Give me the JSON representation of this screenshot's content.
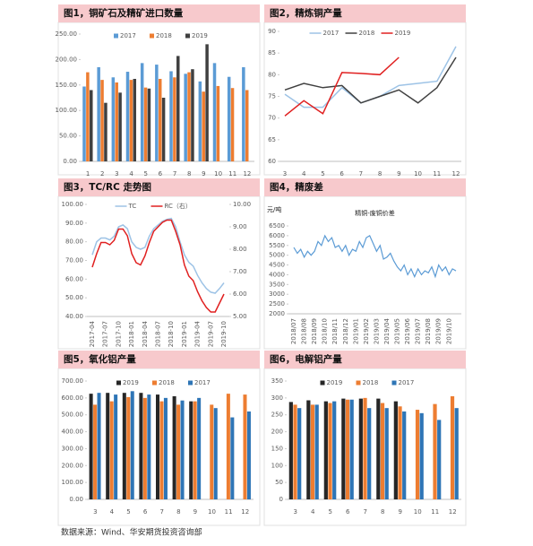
{
  "chart_data": [
    {
      "type": "bar",
      "title": "图1，铜矿石及精矿进口数量",
      "categories": [
        "1",
        "2",
        "3",
        "4",
        "5",
        "6",
        "7",
        "8",
        "9",
        "10",
        "11",
        "12"
      ],
      "series": [
        {
          "name": "2017",
          "color": "#5b9bd5",
          "values": [
            147,
            185,
            165,
            176,
            193,
            190,
            177,
            172,
            157,
            193,
            166,
            185
          ]
        },
        {
          "name": "2018",
          "color": "#ed7d31",
          "values": [
            175,
            160,
            155,
            160,
            145,
            162,
            165,
            175,
            137,
            148,
            144,
            140
          ]
        },
        {
          "name": "2019",
          "color": "#404040",
          "values": [
            140,
            115,
            135,
            162,
            143,
            125,
            207,
            181,
            230,
            null,
            null,
            null
          ]
        }
      ],
      "ylim": [
        0,
        250
      ],
      "yticks": [
        {
          "value": 0,
          "label": "0.00"
        },
        {
          "value": 50,
          "label": "50.00"
        },
        {
          "value": 100,
          "label": "100.00"
        },
        {
          "value": 150,
          "label": "150.00"
        },
        {
          "value": 200,
          "label": "200.00"
        },
        {
          "value": 250,
          "label": "250.00"
        }
      ]
    },
    {
      "type": "line",
      "title": "图2，精炼铜产量",
      "categories": [
        "3",
        "4",
        "5",
        "6",
        "7",
        "8",
        "9",
        "10",
        "11",
        "12"
      ],
      "series": [
        {
          "name": "2017",
          "color": "#9dc3e6",
          "values": [
            75.5,
            72.5,
            72.5,
            77,
            73.5,
            75,
            77.5,
            78,
            78.5,
            86.5
          ]
        },
        {
          "name": "2018",
          "color": "#404040",
          "values": [
            76.5,
            78,
            77,
            77.5,
            73.5,
            75,
            76.5,
            73.5,
            77,
            84
          ]
        },
        {
          "name": "2019",
          "color": "#e02020",
          "values": [
            70.5,
            74,
            71,
            80.5,
            80.3,
            80,
            84,
            null,
            null,
            null
          ]
        }
      ],
      "ylim": [
        60,
        90
      ],
      "yticks": [
        60,
        65,
        70,
        75,
        80,
        85,
        90
      ]
    },
    {
      "type": "line",
      "title": "图3，TC/RC 走势图",
      "categories": [
        "2017-04",
        null,
        null,
        "2017-07",
        null,
        null,
        "2017-10",
        null,
        null,
        "2018-01",
        null,
        null,
        "2018-04",
        null,
        null,
        "2018-07",
        null,
        null,
        "2018-10",
        null,
        null,
        "2019-01",
        null,
        null,
        "2019-04",
        null,
        null,
        "2019-07",
        null,
        null,
        "2019-10"
      ],
      "series": [
        {
          "name": "TC",
          "color": "#9dc3e6",
          "values": [
            73,
            80,
            82,
            82,
            81,
            83,
            88,
            89,
            87,
            80,
            77,
            76,
            77,
            83,
            87,
            89,
            91,
            92,
            92.5,
            88,
            80,
            73,
            69,
            67,
            62,
            58,
            55,
            53,
            52.5,
            55,
            58
          ]
        },
        {
          "name": "RC（右）",
          "color": "#e02020",
          "axis": "y2",
          "values": [
            7.2,
            7.8,
            8.3,
            8.3,
            8.2,
            8.4,
            8.9,
            8.9,
            8.6,
            7.8,
            7.4,
            7.3,
            7.7,
            8.3,
            8.8,
            9.0,
            9.2,
            9.3,
            9.3,
            8.8,
            8.2,
            7.3,
            6.8,
            6.6,
            6.1,
            5.7,
            5.4,
            5.2,
            5.2,
            5.6,
            6.0
          ]
        }
      ],
      "ylim": [
        40,
        100
      ],
      "yticks": [
        {
          "value": 40,
          "label": "40.00"
        },
        {
          "value": 50,
          "label": "50.00"
        },
        {
          "value": 60,
          "label": "60.00"
        },
        {
          "value": 70,
          "label": "70.00"
        },
        {
          "value": 80,
          "label": "80.00"
        },
        {
          "value": 90,
          "label": "90.00"
        },
        {
          "value": 100,
          "label": "100.00"
        }
      ],
      "y2lim": [
        5,
        10
      ],
      "y2ticks": [
        {
          "value": 5,
          "label": "5.00"
        },
        {
          "value": 6,
          "label": "6.00"
        },
        {
          "value": 7,
          "label": "7.00"
        },
        {
          "value": 8,
          "label": "8.00"
        },
        {
          "value": 9,
          "label": "9.00"
        },
        {
          "value": 10,
          "label": "10.00"
        }
      ]
    },
    {
      "type": "line",
      "title": "图4，精废差",
      "subtitle": "精铜-废铜价差",
      "ylabel": "元/吨",
      "categories": [
        "2018/07",
        null,
        null,
        "2018/08",
        null,
        null,
        "2018/09",
        null,
        null,
        "2018/10",
        null,
        null,
        "2018/11",
        null,
        null,
        "2018/12",
        null,
        null,
        "2019/01",
        null,
        null,
        "2019/02",
        null,
        null,
        "2019/03",
        null,
        null,
        "2019/04",
        null,
        null,
        "2019/05",
        null,
        null,
        "2019/06",
        null,
        null,
        "2019/07",
        null,
        null,
        "2019/08",
        null,
        null,
        "2019/09",
        null,
        null,
        "2019/10",
        null,
        null
      ],
      "values": [
        5400,
        5100,
        5300,
        4900,
        5200,
        5000,
        5200,
        5700,
        5500,
        6000,
        5700,
        5900,
        5400,
        5500,
        5200,
        5500,
        5000,
        5300,
        5200,
        5700,
        5400,
        5900,
        6000,
        5600,
        5200,
        5500,
        4800,
        4900,
        5100,
        4700,
        4400,
        4200,
        4500,
        4000,
        4300,
        3900,
        4300,
        4000,
        4200,
        4100,
        4400,
        3900,
        4500,
        4200,
        4400,
        4000,
        4300,
        4200
      ],
      "color": "#5b9bd5",
      "ylim": [
        2000,
        6500
      ],
      "yticks": [
        2000,
        2500,
        3000,
        3500,
        4000,
        4500,
        5000,
        5500,
        6000,
        6500
      ]
    },
    {
      "type": "bar",
      "title": "图5，氧化铝产量",
      "categories": [
        "3",
        "4",
        "5",
        "6",
        "7",
        "8",
        "9",
        "10",
        "11",
        "12"
      ],
      "series": [
        {
          "name": "2019",
          "color": "#262626",
          "values": [
            625,
            630,
            630,
            630,
            620,
            610,
            580,
            null,
            null,
            null
          ]
        },
        {
          "name": "2018",
          "color": "#ed7d31",
          "values": [
            560,
            580,
            605,
            600,
            580,
            560,
            580,
            560,
            625,
            620
          ]
        },
        {
          "name": "2017",
          "color": "#2e75b6",
          "values": [
            630,
            620,
            640,
            620,
            600,
            585,
            600,
            540,
            485,
            520
          ]
        }
      ],
      "ylim": [
        0,
        700
      ],
      "yticks": [
        {
          "value": 0,
          "label": "0.00"
        },
        {
          "value": 100,
          "label": "100.00"
        },
        {
          "value": 200,
          "label": "200.00"
        },
        {
          "value": 300,
          "label": "300.00"
        },
        {
          "value": 400,
          "label": "400.00"
        },
        {
          "value": 500,
          "label": "500.00"
        },
        {
          "value": 600,
          "label": "600.00"
        },
        {
          "value": 700,
          "label": "700.00"
        }
      ]
    },
    {
      "type": "bar",
      "title": "图6，电解铝产量",
      "categories": [
        "3",
        "4",
        "5",
        "6",
        "7",
        "8",
        "9",
        "10",
        "11",
        "12"
      ],
      "series": [
        {
          "name": "2019",
          "color": "#262626",
          "values": [
            288,
            293,
            290,
            298,
            298,
            298,
            290,
            null,
            null,
            null
          ]
        },
        {
          "name": "2018",
          "color": "#ed7d31",
          "values": [
            280,
            280,
            285,
            295,
            300,
            285,
            275,
            265,
            282,
            305
          ]
        },
        {
          "name": "2017",
          "color": "#2e75b6",
          "values": [
            270,
            280,
            290,
            295,
            270,
            270,
            260,
            255,
            235,
            270
          ]
        }
      ],
      "ylim": [
        0,
        350
      ],
      "yticks": [
        0,
        50,
        100,
        150,
        200,
        250,
        300,
        350
      ]
    }
  ],
  "source": "数据来源：Wind、华安期货投资咨询部"
}
